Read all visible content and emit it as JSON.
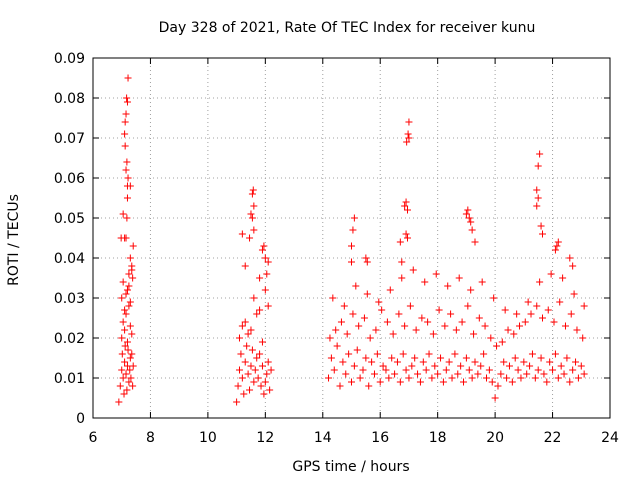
{
  "chart_data": {
    "type": "scatter",
    "title": "Day 328 of 2021, Rate Of TEC Index for receiver kunu",
    "xlabel": "GPS time / hours",
    "ylabel": "ROTI / TECUs",
    "xlim": [
      6,
      24
    ],
    "ylim": [
      0,
      0.09
    ],
    "xticks": [
      6,
      8,
      10,
      12,
      14,
      16,
      18,
      20,
      22,
      24
    ],
    "yticks": [
      0,
      0.01,
      0.02,
      0.03,
      0.04,
      0.05,
      0.06,
      0.07,
      0.08,
      0.09
    ],
    "xtick_labels": [
      "6",
      "8",
      "10",
      "12",
      "14",
      "16",
      "18",
      "20",
      "22",
      "24"
    ],
    "ytick_labels": [
      "0",
      "0.01",
      "0.02",
      "0.03",
      "0.04",
      "0.05",
      "0.06",
      "0.07",
      "0.08",
      "0.09"
    ],
    "grid": true,
    "marker": "+",
    "color": "#ff0000",
    "series": [
      {
        "name": "ROTI",
        "x": [
          6.9,
          6.95,
          7.0,
          7.02,
          7.05,
          7.08,
          7.1,
          7.12,
          7.15,
          7.18,
          7.2,
          7.22,
          7.25,
          7.28,
          7.3,
          7.32,
          7.35,
          7.38,
          7.4,
          7.0,
          7.05,
          7.1,
          7.15,
          7.2,
          7.25,
          7.3,
          7.35,
          7.0,
          7.1,
          7.2,
          7.3,
          7.05,
          7.15,
          7.25,
          7.35,
          7.15,
          7.18,
          7.2,
          7.2,
          7.22,
          7.15,
          7.18,
          7.12,
          7.1,
          7.12,
          7.15,
          7.2,
          7.17,
          7.22,
          7.1,
          7.05,
          6.98,
          7.4,
          7.3,
          7.35,
          7.38,
          7.25,
          7.3,
          11.0,
          11.05,
          11.1,
          11.15,
          11.2,
          11.25,
          11.3,
          11.35,
          11.4,
          11.45,
          11.5,
          11.55,
          11.6,
          11.65,
          11.7,
          11.75,
          11.8,
          11.85,
          11.9,
          11.95,
          12.0,
          12.05,
          12.1,
          12.15,
          12.2,
          11.1,
          11.3,
          11.5,
          11.7,
          11.9,
          12.1,
          11.2,
          11.4,
          11.6,
          11.8,
          12.0,
          11.55,
          11.6,
          11.5,
          11.55,
          11.58,
          11.6,
          11.45,
          11.2,
          11.3,
          11.9,
          12.0,
          11.95,
          12.1,
          12.05,
          11.8,
          14.2,
          14.3,
          14.4,
          14.5,
          14.6,
          14.7,
          14.8,
          14.9,
          15.0,
          15.1,
          15.2,
          15.3,
          15.4,
          15.5,
          15.6,
          15.7,
          15.8,
          15.9,
          16.0,
          16.1,
          16.2,
          16.3,
          16.4,
          16.5,
          16.6,
          16.7,
          16.8,
          16.9,
          17.0,
          17.1,
          17.2,
          17.3,
          17.4,
          17.5,
          17.6,
          17.7,
          17.8,
          17.9,
          18.0,
          18.1,
          18.2,
          18.3,
          18.4,
          18.5,
          18.6,
          18.7,
          18.8,
          18.9,
          19.0,
          19.1,
          19.2,
          19.3,
          19.4,
          19.5,
          19.6,
          19.7,
          19.8,
          19.9,
          20.0,
          20.1,
          20.2,
          20.3,
          20.4,
          20.5,
          20.6,
          20.7,
          20.8,
          20.9,
          21.0,
          21.1,
          21.2,
          21.3,
          21.4,
          21.5,
          21.6,
          21.7,
          21.8,
          21.9,
          22.0,
          22.1,
          22.2,
          22.3,
          22.4,
          22.5,
          22.6,
          22.7,
          22.8,
          22.9,
          23.0,
          23.1,
          14.25,
          14.45,
          14.65,
          14.85,
          15.05,
          15.25,
          15.45,
          15.65,
          15.85,
          16.05,
          16.25,
          16.45,
          16.65,
          16.85,
          17.05,
          17.25,
          17.45,
          17.65,
          17.85,
          18.05,
          18.25,
          18.45,
          18.65,
          18.85,
          19.05,
          19.25,
          19.45,
          19.65,
          19.85,
          20.05,
          20.25,
          20.45,
          20.65,
          20.85,
          21.05,
          21.25,
          21.45,
          21.65,
          21.85,
          22.05,
          22.25,
          22.45,
          22.65,
          22.85,
          23.05,
          14.35,
          14.75,
          15.15,
          15.55,
          15.95,
          16.35,
          16.75,
          17.15,
          17.55,
          17.95,
          18.35,
          18.75,
          19.15,
          19.55,
          19.95,
          20.35,
          20.75,
          21.15,
          21.55,
          21.95,
          22.35,
          22.75,
          23.1,
          15.0,
          15.05,
          15.1,
          15.0,
          15.5,
          15.55,
          16.85,
          16.9,
          16.95,
          17.0,
          16.92,
          16.97,
          17.0,
          16.9,
          16.95,
          16.7,
          16.75,
          19.0,
          19.05,
          19.1,
          19.15,
          19.2,
          19.3,
          21.45,
          21.5,
          21.55,
          21.5,
          21.45,
          21.6,
          21.65,
          22.1,
          22.15,
          22.2,
          22.6,
          22.7
        ],
        "y": [
          0.004,
          0.008,
          0.012,
          0.016,
          0.01,
          0.006,
          0.014,
          0.018,
          0.011,
          0.007,
          0.013,
          0.017,
          0.009,
          0.012,
          0.015,
          0.01,
          0.016,
          0.008,
          0.013,
          0.02,
          0.024,
          0.022,
          0.026,
          0.019,
          0.028,
          0.023,
          0.021,
          0.03,
          0.027,
          0.032,
          0.029,
          0.034,
          0.031,
          0.036,
          0.038,
          0.045,
          0.05,
          0.055,
          0.058,
          0.06,
          0.062,
          0.064,
          0.068,
          0.071,
          0.074,
          0.076,
          0.079,
          0.08,
          0.085,
          0.045,
          0.051,
          0.045,
          0.043,
          0.04,
          0.037,
          0.035,
          0.033,
          0.058,
          0.004,
          0.008,
          0.012,
          0.016,
          0.01,
          0.006,
          0.014,
          0.018,
          0.011,
          0.007,
          0.013,
          0.017,
          0.009,
          0.012,
          0.015,
          0.01,
          0.016,
          0.008,
          0.013,
          0.006,
          0.009,
          0.011,
          0.014,
          0.007,
          0.012,
          0.02,
          0.024,
          0.022,
          0.026,
          0.019,
          0.028,
          0.023,
          0.021,
          0.03,
          0.027,
          0.032,
          0.05,
          0.053,
          0.051,
          0.056,
          0.057,
          0.047,
          0.045,
          0.046,
          0.038,
          0.042,
          0.04,
          0.043,
          0.039,
          0.036,
          0.035,
          0.01,
          0.015,
          0.012,
          0.018,
          0.008,
          0.014,
          0.011,
          0.016,
          0.009,
          0.013,
          0.017,
          0.01,
          0.012,
          0.015,
          0.008,
          0.014,
          0.011,
          0.016,
          0.009,
          0.013,
          0.012,
          0.01,
          0.015,
          0.011,
          0.014,
          0.009,
          0.016,
          0.012,
          0.01,
          0.013,
          0.015,
          0.011,
          0.009,
          0.014,
          0.012,
          0.016,
          0.01,
          0.013,
          0.011,
          0.015,
          0.009,
          0.012,
          0.014,
          0.01,
          0.016,
          0.011,
          0.013,
          0.009,
          0.015,
          0.012,
          0.01,
          0.014,
          0.011,
          0.013,
          0.016,
          0.01,
          0.012,
          0.009,
          0.005,
          0.008,
          0.011,
          0.014,
          0.01,
          0.013,
          0.009,
          0.015,
          0.012,
          0.01,
          0.014,
          0.011,
          0.013,
          0.016,
          0.01,
          0.012,
          0.015,
          0.011,
          0.009,
          0.014,
          0.012,
          0.016,
          0.01,
          0.013,
          0.011,
          0.015,
          0.009,
          0.012,
          0.014,
          0.01,
          0.013,
          0.011,
          0.02,
          0.022,
          0.024,
          0.021,
          0.026,
          0.023,
          0.025,
          0.02,
          0.022,
          0.027,
          0.024,
          0.021,
          0.026,
          0.023,
          0.028,
          0.022,
          0.025,
          0.024,
          0.021,
          0.027,
          0.023,
          0.026,
          0.022,
          0.024,
          0.028,
          0.021,
          0.025,
          0.023,
          0.02,
          0.018,
          0.019,
          0.022,
          0.021,
          0.023,
          0.024,
          0.026,
          0.028,
          0.025,
          0.027,
          0.024,
          0.029,
          0.023,
          0.026,
          0.022,
          0.02,
          0.03,
          0.028,
          0.033,
          0.031,
          0.029,
          0.032,
          0.035,
          0.037,
          0.034,
          0.036,
          0.033,
          0.035,
          0.032,
          0.034,
          0.03,
          0.027,
          0.026,
          0.029,
          0.034,
          0.036,
          0.035,
          0.031,
          0.028,
          0.043,
          0.047,
          0.05,
          0.039,
          0.04,
          0.039,
          0.053,
          0.054,
          0.052,
          0.07,
          0.069,
          0.071,
          0.074,
          0.046,
          0.045,
          0.044,
          0.039,
          0.051,
          0.052,
          0.05,
          0.049,
          0.047,
          0.044,
          0.057,
          0.063,
          0.066,
          0.055,
          0.053,
          0.048,
          0.046,
          0.042,
          0.043,
          0.044,
          0.04,
          0.038
        ]
      }
    ]
  }
}
